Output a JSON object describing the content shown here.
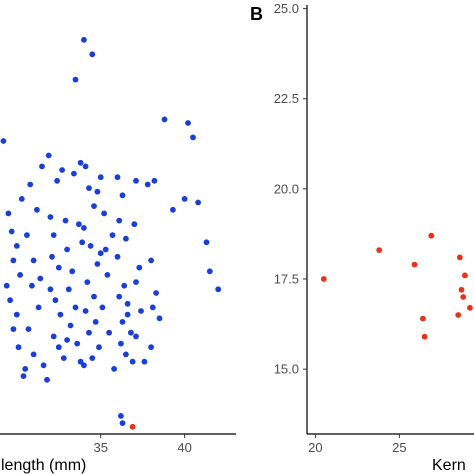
{
  "chart_data": [
    {
      "type": "scatter",
      "panel_label": "",
      "xlabel": "length (mm)",
      "ylabel": "",
      "xlim": [
        29,
        43
      ],
      "ylim": [
        13.5,
        25.5
      ],
      "grid": false,
      "x_ticks": [
        35,
        40
      ],
      "y_ticks": [],
      "series": [
        {
          "color": "#1a3fd6",
          "points": [
            [
              29.2,
              21.6
            ],
            [
              29.5,
              19.6
            ],
            [
              29.7,
              19.1
            ],
            [
              30.0,
              18.7
            ],
            [
              29.8,
              18.3
            ],
            [
              30.2,
              17.9
            ],
            [
              29.6,
              17.2
            ],
            [
              30.0,
              16.8
            ],
            [
              29.8,
              16.4
            ],
            [
              30.1,
              15.9
            ],
            [
              30.5,
              15.3
            ],
            [
              31.0,
              15.7
            ],
            [
              30.8,
              20.4
            ],
            [
              31.2,
              19.7
            ],
            [
              31.5,
              20.9
            ],
            [
              30.6,
              19.0
            ],
            [
              31.0,
              18.3
            ],
            [
              30.9,
              17.6
            ],
            [
              31.4,
              17.8
            ],
            [
              31.3,
              17.0
            ],
            [
              30.7,
              16.4
            ],
            [
              31.6,
              15.4
            ],
            [
              31.8,
              15.0
            ],
            [
              30.4,
              15.1
            ],
            [
              32.0,
              19.5
            ],
            [
              32.2,
              19.0
            ],
            [
              32.1,
              18.4
            ],
            [
              32.5,
              18.1
            ],
            [
              32.0,
              17.5
            ],
            [
              32.3,
              17.2
            ],
            [
              32.6,
              16.8
            ],
            [
              32.2,
              16.2
            ],
            [
              32.8,
              15.6
            ],
            [
              32.5,
              15.9
            ],
            [
              32.4,
              20.5
            ],
            [
              32.9,
              19.4
            ],
            [
              33.0,
              18.6
            ],
            [
              33.3,
              18.0
            ],
            [
              33.1,
              17.5
            ],
            [
              33.5,
              17.0
            ],
            [
              33.2,
              16.5
            ],
            [
              33.6,
              16.0
            ],
            [
              33.0,
              16.1
            ],
            [
              33.8,
              15.5
            ],
            [
              33.4,
              20.7
            ],
            [
              33.7,
              19.3
            ],
            [
              33.5,
              23.3
            ],
            [
              33.9,
              18.8
            ],
            [
              34.0,
              24.4
            ],
            [
              34.5,
              24.0
            ],
            [
              34.1,
              20.9
            ],
            [
              34.3,
              20.3
            ],
            [
              34.6,
              19.8
            ],
            [
              34.0,
              19.2
            ],
            [
              34.4,
              18.7
            ],
            [
              34.8,
              18.2
            ],
            [
              34.2,
              17.7
            ],
            [
              34.6,
              17.3
            ],
            [
              34.1,
              16.9
            ],
            [
              34.7,
              16.6
            ],
            [
              34.3,
              16.3
            ],
            [
              34.9,
              15.9
            ],
            [
              34.5,
              15.6
            ],
            [
              34.0,
              15.4
            ],
            [
              35.0,
              18.5
            ],
            [
              35.3,
              18.6
            ],
            [
              35.0,
              20.6
            ],
            [
              35.2,
              19.6
            ],
            [
              35.4,
              17.9
            ],
            [
              35.1,
              17.0
            ],
            [
              35.5,
              16.3
            ],
            [
              35.8,
              15.3
            ],
            [
              36.0,
              20.6
            ],
            [
              36.3,
              20.1
            ],
            [
              36.1,
              19.4
            ],
            [
              36.5,
              18.9
            ],
            [
              36.0,
              18.4
            ],
            [
              36.4,
              17.6
            ],
            [
              36.1,
              17.3
            ],
            [
              36.6,
              17.1
            ],
            [
              36.3,
              16.6
            ],
            [
              36.8,
              16.3
            ],
            [
              36.5,
              15.7
            ],
            [
              36.9,
              15.5
            ],
            [
              36.2,
              16.0
            ],
            [
              36.6,
              16.8
            ],
            [
              37.0,
              19.3
            ],
            [
              37.3,
              18.1
            ],
            [
              37.1,
              17.7
            ],
            [
              37.4,
              16.9
            ],
            [
              37.6,
              15.5
            ],
            [
              37.1,
              16.2
            ],
            [
              37.8,
              20.4
            ],
            [
              38.2,
              20.5
            ],
            [
              38.0,
              18.3
            ],
            [
              38.3,
              17.4
            ],
            [
              38.1,
              17.0
            ],
            [
              38.5,
              16.7
            ],
            [
              38.0,
              15.9
            ],
            [
              38.8,
              22.2
            ],
            [
              39.3,
              19.7
            ],
            [
              40.2,
              22.1
            ],
            [
              40.5,
              21.7
            ],
            [
              40.0,
              20.0
            ],
            [
              40.8,
              19.9
            ],
            [
              41.3,
              18.8
            ],
            [
              41.5,
              18.0
            ],
            [
              42.0,
              17.5
            ],
            [
              36.2,
              14.0
            ],
            [
              36.3,
              13.8
            ],
            [
              37.1,
              20.5
            ],
            [
              35.7,
              19.0
            ],
            [
              34.8,
              20.2
            ],
            [
              33.8,
              21.0
            ],
            [
              32.7,
              20.8
            ],
            [
              31.9,
              21.2
            ],
            [
              30.3,
              20.0
            ],
            [
              29.4,
              17.6
            ]
          ]
        },
        {
          "color": "#e8311a",
          "points": [
            [
              36.9,
              13.7
            ]
          ]
        }
      ]
    },
    {
      "type": "scatter",
      "panel_label": "B",
      "xlabel": "Kern",
      "ylabel": "",
      "xlim": [
        19.5,
        29.8
      ],
      "ylim": [
        13.2,
        25.1
      ],
      "grid": false,
      "x_ticks": [
        20,
        25
      ],
      "y_ticks": [
        15.0,
        17.5,
        20.0,
        22.5,
        25.0
      ],
      "x_tick_labels": [
        "20",
        "25"
      ],
      "y_tick_labels": [
        "15.0",
        "17.5",
        "20.0",
        "22.5",
        "25.0"
      ],
      "series": [
        {
          "color": "#e8311a",
          "points": [
            [
              20.5,
              17.5
            ],
            [
              23.8,
              18.3
            ],
            [
              25.9,
              17.9
            ],
            [
              26.4,
              16.4
            ],
            [
              26.5,
              15.9
            ],
            [
              26.9,
              18.7
            ],
            [
              28.6,
              18.1
            ],
            [
              28.7,
              17.2
            ],
            [
              28.9,
              17.6
            ],
            [
              28.8,
              17.0
            ],
            [
              28.5,
              16.5
            ],
            [
              29.2,
              16.7
            ]
          ]
        }
      ]
    }
  ]
}
